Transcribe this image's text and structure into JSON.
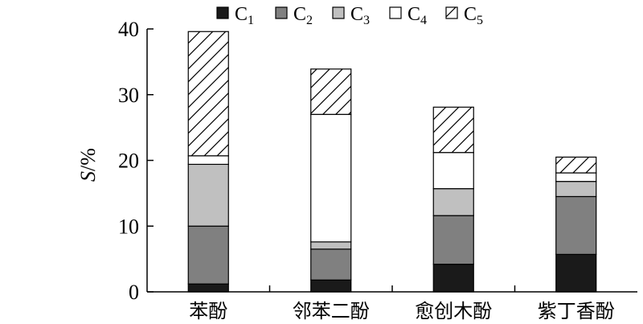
{
  "chart_data": {
    "type": "bar",
    "stacked": true,
    "categories": [
      "苯酚",
      "邻苯二酚",
      "愈创木酚",
      "紫丁香酚"
    ],
    "series": [
      {
        "name": "C",
        "sub": "1",
        "color": "#1a1a1a",
        "pattern": "solid",
        "values": [
          1.2,
          1.8,
          4.2,
          5.7
        ]
      },
      {
        "name": "C",
        "sub": "2",
        "color": "#808080",
        "pattern": "solid",
        "values": [
          8.8,
          4.7,
          7.4,
          8.8
        ]
      },
      {
        "name": "C",
        "sub": "3",
        "color": "#c0c0c0",
        "pattern": "solid",
        "values": [
          9.4,
          1.1,
          4.1,
          2.3
        ]
      },
      {
        "name": "C",
        "sub": "4",
        "color": "#ffffff",
        "pattern": "solid",
        "values": [
          1.3,
          19.4,
          5.5,
          1.3
        ]
      },
      {
        "name": "C",
        "sub": "5",
        "color": "#ffffff",
        "pattern": "hatch",
        "values": [
          18.9,
          6.9,
          6.9,
          2.4
        ]
      }
    ],
    "ylabel": "S/%",
    "ylabel_italic_part": "S",
    "ylabel_rest": "/%",
    "ylim": [
      0,
      40
    ],
    "yticks": [
      0,
      10,
      20,
      30,
      40
    ],
    "grid": false,
    "legend": "top"
  }
}
